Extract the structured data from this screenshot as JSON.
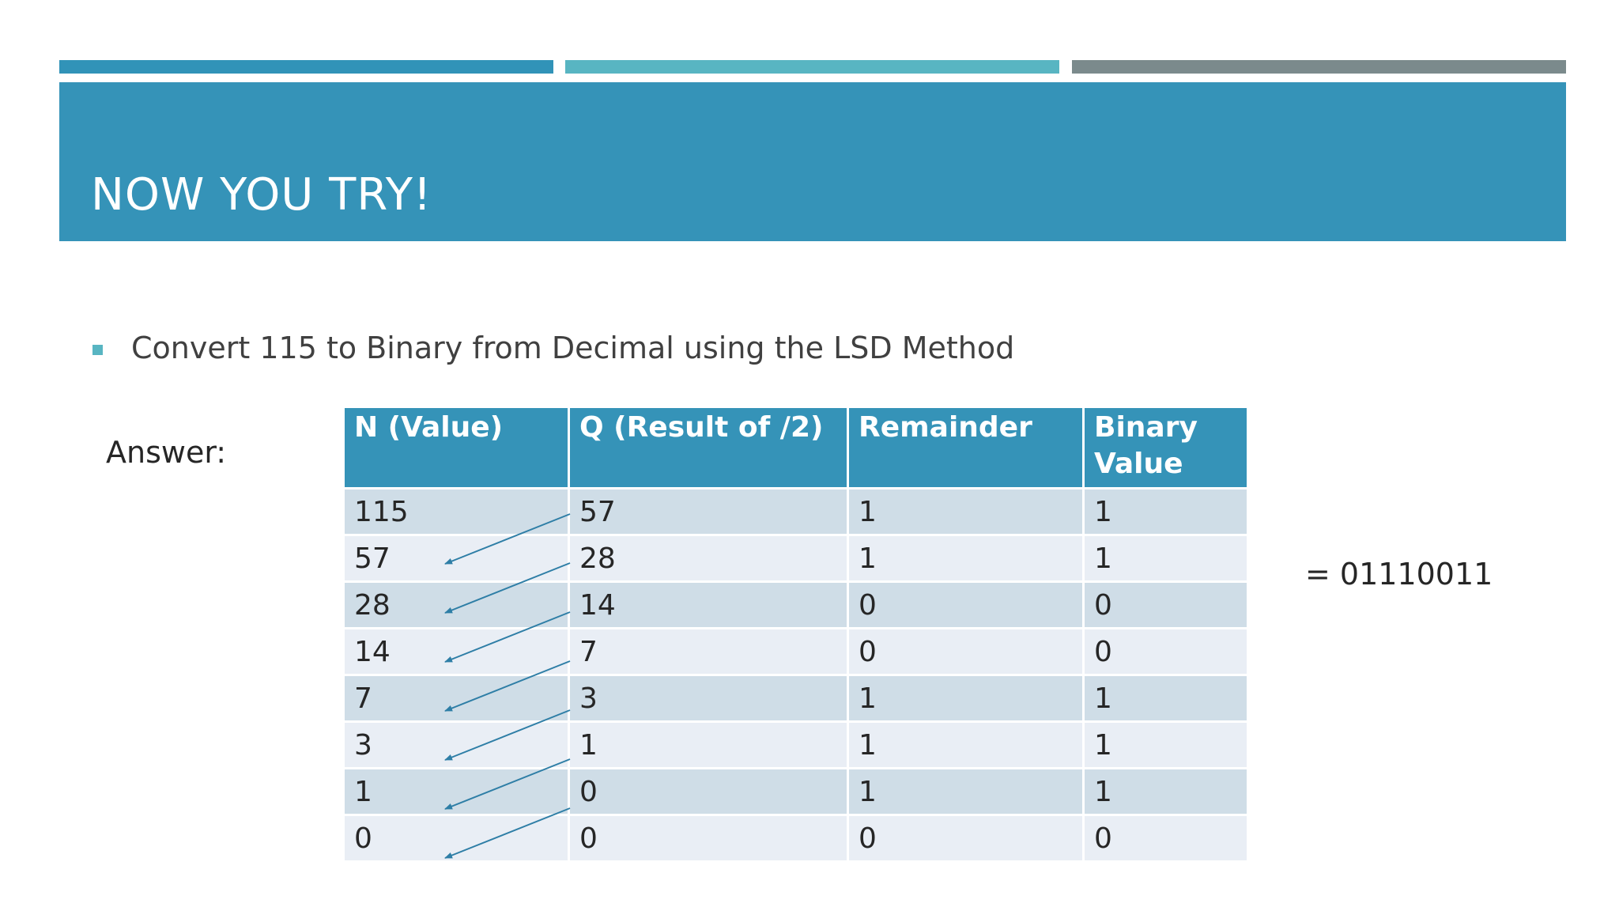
{
  "slide": {
    "title": "NOW YOU TRY!",
    "bullet": "Convert 115 to Binary from Decimal using the LSD Method",
    "answer_label": "Answer:",
    "result": "= 01110011"
  },
  "colors": {
    "primary": "#3593b8",
    "accent_teal": "#58b5c2",
    "accent_gray": "#7b8a8c",
    "row_dark": "#cfdde7",
    "row_light": "#e9eef5",
    "arrow": "#2e7ea6"
  },
  "table": {
    "headers": [
      "N (Value)",
      "Q (Result of /2)",
      "Remainder",
      "Binary Value"
    ],
    "rows": [
      [
        "115",
        "57",
        "1",
        "1"
      ],
      [
        "57",
        "28",
        "1",
        "1"
      ],
      [
        "28",
        "14",
        "0",
        "0"
      ],
      [
        "14",
        "7",
        "0",
        "0"
      ],
      [
        "7",
        "3",
        "1",
        "1"
      ],
      [
        "3",
        "1",
        "1",
        "1"
      ],
      [
        "1",
        "0",
        "1",
        "1"
      ],
      [
        "0",
        "0",
        "0",
        "0"
      ]
    ]
  }
}
